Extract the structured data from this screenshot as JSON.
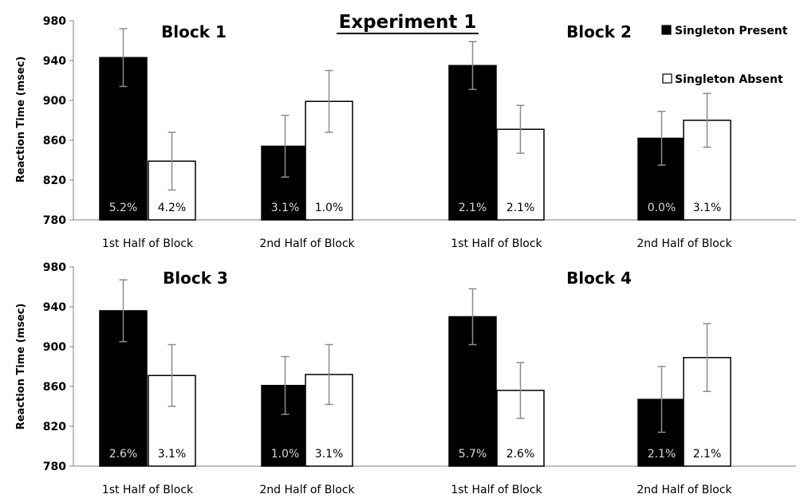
{
  "chart_data": {
    "type": "bar",
    "title": "Experiment 1",
    "ylabel": "Reaction Time (msec)",
    "ylim": [
      780,
      980
    ],
    "yticks": [
      780,
      820,
      860,
      900,
      940,
      980
    ],
    "categories": [
      "1st Half of Block",
      "2nd Half of Block"
    ],
    "legend": {
      "placement": "top-right",
      "entries": [
        {
          "name": "Singleton Present",
          "color": "#000000"
        },
        {
          "name": "Singleton Absent",
          "color": "#ffffff"
        }
      ]
    },
    "colors": {
      "present": "#000000",
      "absent": "#ffffff",
      "error_bar": "#8c8c8c",
      "axis": "#7f7f7f"
    },
    "panels": [
      {
        "title": "Block 1",
        "series": [
          {
            "name": "Singleton Present",
            "values": [
              943,
              854
            ],
            "errors": [
              29,
              31
            ],
            "labels": [
              "5.2%",
              "3.1%"
            ]
          },
          {
            "name": "Singleton Absent",
            "values": [
              839,
              899
            ],
            "errors": [
              29,
              31
            ],
            "labels": [
              "4.2%",
              "1.0%"
            ]
          }
        ]
      },
      {
        "title": "Block 2",
        "series": [
          {
            "name": "Singleton Present",
            "values": [
              935,
              862
            ],
            "errors": [
              24,
              27
            ],
            "labels": [
              "2.1%",
              "0.0%"
            ]
          },
          {
            "name": "Singleton Absent",
            "values": [
              871,
              880
            ],
            "errors": [
              24,
              27
            ],
            "labels": [
              "2.1%",
              "3.1%"
            ]
          }
        ]
      },
      {
        "title": "Block 3",
        "series": [
          {
            "name": "Singleton Present",
            "values": [
              936,
              861
            ],
            "errors": [
              31,
              29
            ],
            "labels": [
              "2.6%",
              "1.0%"
            ]
          },
          {
            "name": "Singleton Absent",
            "values": [
              871,
              872
            ],
            "errors": [
              31,
              30
            ],
            "labels": [
              "3.1%",
              "3.1%"
            ]
          }
        ]
      },
      {
        "title": "Block 4",
        "series": [
          {
            "name": "Singleton Present",
            "values": [
              930,
              847
            ],
            "errors": [
              28,
              33
            ],
            "labels": [
              "5.7%",
              "2.1%"
            ]
          },
          {
            "name": "Singleton Absent",
            "values": [
              856,
              889
            ],
            "errors": [
              28,
              34
            ],
            "labels": [
              "2.6%",
              "2.1%"
            ]
          }
        ]
      }
    ]
  }
}
